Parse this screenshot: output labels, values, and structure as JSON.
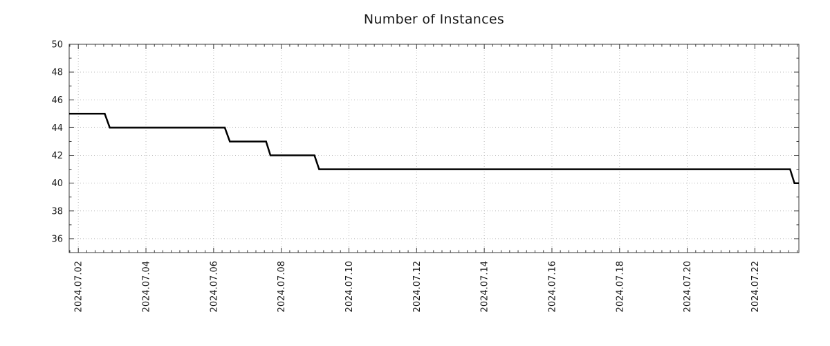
{
  "page": {
    "background_color": "#ffffff"
  },
  "chart_data": {
    "type": "line",
    "subtype": "step",
    "title": "Number of Instances",
    "xlabel": "",
    "ylabel": "",
    "line_color": "#000000",
    "line_width": 2.5,
    "grid_color": "#b8b8b8",
    "grid_style": "dotted",
    "axis_color": "#3a3a3a",
    "text_color": "#1a1a1a",
    "legend": "none",
    "x_unit": "day of 2024-07 (fractional)",
    "x_range": [
      1.73,
      23.3
    ],
    "y_range": [
      35,
      50
    ],
    "x_tick_values": [
      2,
      4,
      6,
      8,
      10,
      12,
      14,
      16,
      18,
      20,
      22
    ],
    "x_tick_labels": [
      "2024.07.02",
      "2024.07.04",
      "2024.07.06",
      "2024.07.08",
      "2024.07.10",
      "2024.07.12",
      "2024.07.14",
      "2024.07.16",
      "2024.07.18",
      "2024.07.20",
      "2024.07.22"
    ],
    "y_tick_values": [
      36,
      38,
      40,
      42,
      44,
      46,
      48,
      50
    ],
    "y_tick_labels": [
      "36",
      "38",
      "40",
      "42",
      "44",
      "46",
      "48",
      "50"
    ],
    "x_minor_step": 0.25,
    "y_minor_step": 1,
    "points": [
      [
        1.73,
        45
      ],
      [
        2.78,
        45
      ],
      [
        2.93,
        44
      ],
      [
        6.33,
        44
      ],
      [
        6.48,
        43
      ],
      [
        7.55,
        43
      ],
      [
        7.68,
        42
      ],
      [
        8.98,
        42
      ],
      [
        9.12,
        41
      ],
      [
        23.04,
        41
      ],
      [
        23.17,
        40
      ],
      [
        23.3,
        40
      ]
    ],
    "step_levels": [
      45,
      44,
      43,
      42,
      41,
      40
    ],
    "start_value": 45,
    "end_value": 40
  }
}
